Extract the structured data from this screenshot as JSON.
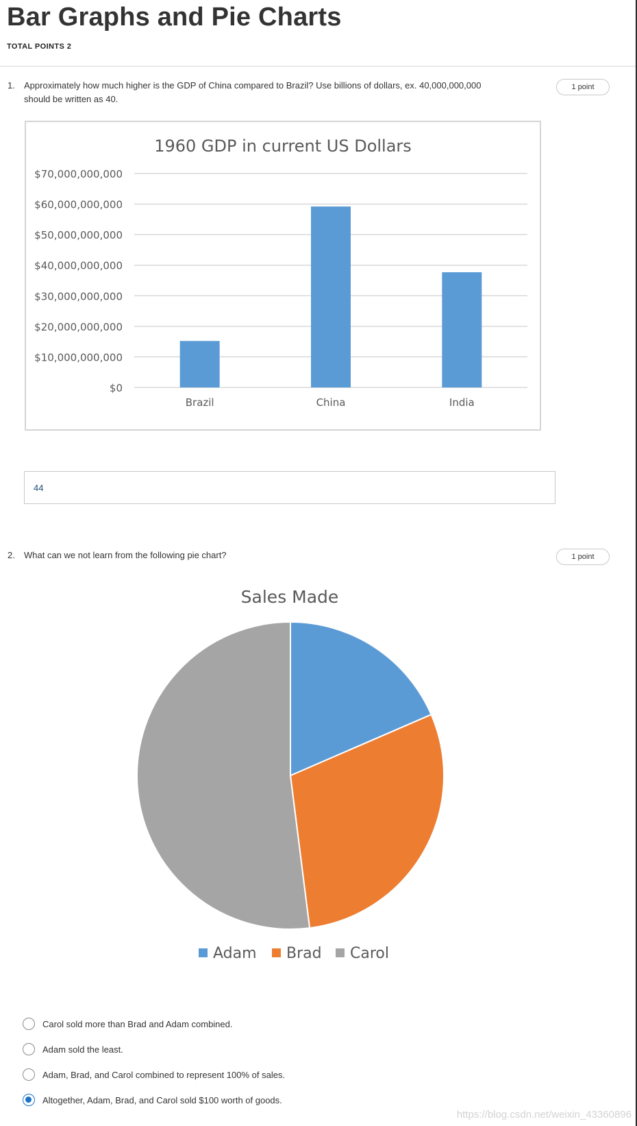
{
  "page": {
    "title": "Bar Graphs and Pie Charts",
    "total_points": "TOTAL POINTS 2"
  },
  "questions": [
    {
      "number": "1.",
      "text_line1": "Approximately how much higher is the GDP of China compared to Brazil? Use billions of dollars, ex. 40,000,000,000",
      "text_line2": "should be written as 40.",
      "points": "1 point",
      "answer_value": "44"
    },
    {
      "number": "2.",
      "text": "What can we not learn from the following pie chart?",
      "points": "1 point",
      "options": [
        {
          "label": "Carol sold more than Brad and Adam combined.",
          "selected": false
        },
        {
          "label": "Adam sold the least.",
          "selected": false
        },
        {
          "label": "Adam, Brad, and Carol combined to represent 100% of sales.",
          "selected": false
        },
        {
          "label": "Altogether, Adam, Brad, and Carol sold $100 worth of goods.",
          "selected": true
        }
      ]
    }
  ],
  "watermark": "https://blog.csdn.net/weixin_43360896",
  "chart_data": [
    {
      "type": "bar",
      "title": "1960 GDP in current US Dollars",
      "categories": [
        "Brazil",
        "China",
        "India"
      ],
      "values": [
        15200000000,
        59200000000,
        37700000000
      ],
      "ylim": [
        0,
        70000000000
      ],
      "yticks": [
        0,
        10000000000,
        20000000000,
        30000000000,
        40000000000,
        50000000000,
        60000000000,
        70000000000
      ],
      "ytick_labels": [
        "$0",
        "$10,000,000,000",
        "$20,000,000,000",
        "$30,000,000,000",
        "$40,000,000,000",
        "$50,000,000,000",
        "$60,000,000,000",
        "$70,000,000,000"
      ],
      "xlabel": "",
      "ylabel": "",
      "grid": true,
      "legend": "none",
      "color": "#5b9bd5"
    },
    {
      "type": "pie",
      "title": "Sales Made",
      "categories": [
        "Adam",
        "Brad",
        "Carol"
      ],
      "values": [
        18.5,
        29.5,
        52
      ],
      "colors": [
        "#5b9bd5",
        "#ed7d31",
        "#a5a5a5"
      ],
      "legend": "bottom"
    }
  ]
}
